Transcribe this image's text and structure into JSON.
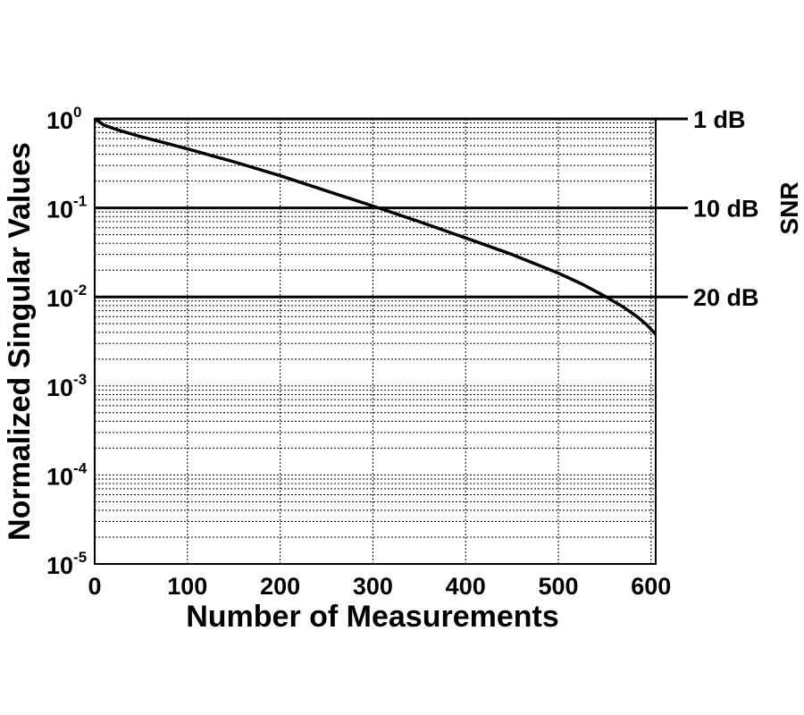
{
  "chart_data": {
    "type": "line",
    "xlabel": "Number of Measurements",
    "ylabel": "Normalized Singular Values",
    "right_axis_label": "SNR",
    "xlim": [
      0,
      605
    ],
    "ylim": [
      1e-05,
      1
    ],
    "yscale": "log",
    "grid": true,
    "x_ticks": [
      "0",
      "100",
      "200",
      "300",
      "400",
      "500",
      "600"
    ],
    "y_ticks": [
      {
        "base": "10",
        "exp": "0"
      },
      {
        "base": "10",
        "exp": "-1"
      },
      {
        "base": "10",
        "exp": "-2"
      },
      {
        "base": "10",
        "exp": "-3"
      },
      {
        "base": "10",
        "exp": "-4"
      },
      {
        "base": "10",
        "exp": "-5"
      }
    ],
    "reference_lines": [
      {
        "label": "1 dB",
        "y": 1.0
      },
      {
        "label": "10 dB",
        "y": 0.1
      },
      {
        "label": "20 dB",
        "y": 0.01
      }
    ],
    "series": [
      {
        "x": [
          0,
          10,
          25,
          50,
          75,
          100,
          150,
          200,
          250,
          300,
          350,
          400,
          450,
          500,
          525,
          550,
          570,
          585,
          595,
          605
        ],
        "y": [
          1.0,
          0.85,
          0.75,
          0.63,
          0.54,
          0.46,
          0.33,
          0.23,
          0.155,
          0.105,
          0.07,
          0.046,
          0.03,
          0.0185,
          0.014,
          0.0102,
          0.0077,
          0.006,
          0.0049,
          0.0038
        ]
      }
    ]
  }
}
